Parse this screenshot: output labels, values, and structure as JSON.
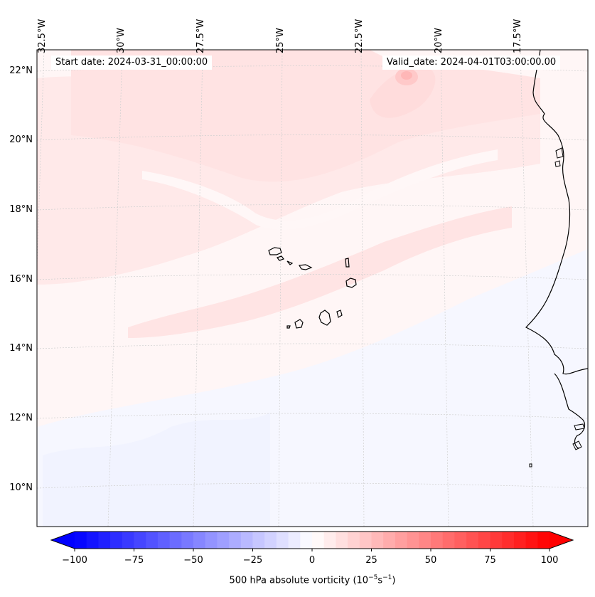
{
  "map": {
    "start_date": "Start date: 2024-03-31_00:00:00",
    "valid_date": "Valid_date: 2024-04-01T03:00:00.00",
    "lon_labels": [
      "32.5°W",
      "30°W",
      "27.5°W",
      "25°W",
      "22.5°W",
      "20°W",
      "17.5°W"
    ],
    "lat_labels": [
      "22°N",
      "20°N",
      "18°N",
      "16°N",
      "14°N",
      "12°N",
      "10°N"
    ]
  },
  "colorbar": {
    "label_text": "500 hPa absolute vorticity (10",
    "label_exp1": "−5",
    "label_mid": "s",
    "label_exp2": "−1",
    "label_end": ")",
    "ticks": [
      "−100",
      "−75",
      "−50",
      "−25",
      "0",
      "25",
      "50",
      "75",
      "100"
    ],
    "min": -100,
    "max": 100,
    "low_color": "#0000ff",
    "mid_color": "#ffffff",
    "high_color": "#ff0000"
  },
  "colors": {
    "coastline": "#000000",
    "gridline": "#bbbbbb",
    "positive_weak": "#ffe2e2",
    "positive_mid": "#ffcfcf",
    "negative_weak": "#f3f5ff"
  }
}
